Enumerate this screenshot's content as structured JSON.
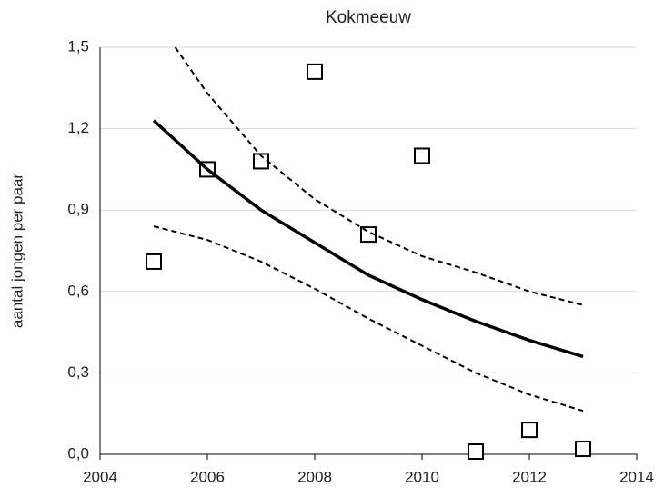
{
  "chart_data": {
    "type": "scatter",
    "title": "Kokmeeuw",
    "y_label": "aantal jongen per paar",
    "xlim": [
      2004,
      2014
    ],
    "xticks": [
      2004,
      2006,
      2008,
      2010,
      2012,
      2014
    ],
    "ylim": [
      0,
      1.5
    ],
    "yticks": [
      {
        "value": 0,
        "label": "0,0"
      },
      {
        "value": 0.3,
        "label": "0,3"
      },
      {
        "value": 0.6,
        "label": "0,6"
      },
      {
        "value": 0.9,
        "label": "0,9"
      },
      {
        "value": 1.2,
        "label": "1,2"
      },
      {
        "value": 1.5,
        "label": "1,5"
      }
    ],
    "grid": true,
    "series": [
      {
        "style": "markers",
        "color": "#000000",
        "x": [
          2005,
          2006,
          2007,
          2008,
          2009,
          2010,
          2011,
          2012,
          2013
        ],
        "values": [
          0.71,
          1.05,
          1.08,
          1.41,
          0.81,
          1.1,
          0.01,
          0.09,
          0.02
        ]
      },
      {
        "style": "solid",
        "color": "#000000",
        "x": [
          2005,
          2006,
          2007,
          2008,
          2009,
          2010,
          2011,
          2012,
          2013
        ],
        "values": [
          1.23,
          1.05,
          0.9,
          0.78,
          0.66,
          0.57,
          0.49,
          0.42,
          0.36
        ]
      },
      {
        "style": "dashed",
        "color": "#000000",
        "x": [
          2005.4,
          2006,
          2007,
          2008,
          2009,
          2010,
          2011,
          2012,
          2013
        ],
        "values": [
          1.5,
          1.33,
          1.1,
          0.94,
          0.82,
          0.73,
          0.67,
          0.6,
          0.55
        ]
      },
      {
        "style": "dashed",
        "color": "#000000",
        "x": [
          2005,
          2006,
          2007,
          2008,
          2009,
          2010,
          2011,
          2012,
          2013
        ],
        "values": [
          0.84,
          0.79,
          0.71,
          0.61,
          0.5,
          0.4,
          0.3,
          0.22,
          0.16
        ]
      }
    ]
  }
}
